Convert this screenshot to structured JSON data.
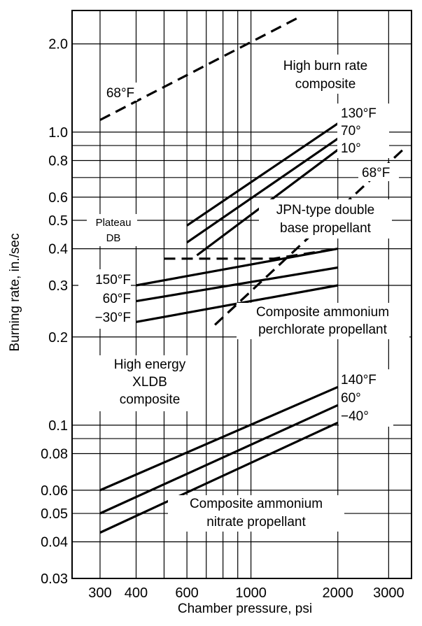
{
  "chart_data": {
    "type": "line",
    "xscale": "log",
    "yscale": "log",
    "xlabel": "Chamber pressure, psi",
    "ylabel": "Burning rate, in./sec",
    "xlim": [
      240,
      3600
    ],
    "ylim": [
      0.03,
      2.6
    ],
    "grid": true,
    "x_ticks": [
      {
        "v": 300,
        "t": "300"
      },
      {
        "v": 400,
        "t": "400"
      },
      {
        "v": 600,
        "t": "600"
      },
      {
        "v": 1000,
        "t": "1000"
      },
      {
        "v": 2000,
        "t": "2000"
      },
      {
        "v": 3000,
        "t": "3000"
      }
    ],
    "y_ticks": [
      {
        "v": 2.0,
        "t": "2.0"
      },
      {
        "v": 1.0,
        "t": "1.0"
      },
      {
        "v": 0.8,
        "t": "0.8"
      },
      {
        "v": 0.6,
        "t": "0.6"
      },
      {
        "v": 0.5,
        "t": "0.5"
      },
      {
        "v": 0.4,
        "t": "0.4"
      },
      {
        "v": 0.3,
        "t": "0.3"
      },
      {
        "v": 0.2,
        "t": "0.2"
      },
      {
        "v": 0.1,
        "t": "0.1"
      },
      {
        "v": 0.08,
        "t": "0.08"
      },
      {
        "v": 0.06,
        "t": "0.06"
      },
      {
        "v": 0.05,
        "t": "0.05"
      },
      {
        "v": 0.04,
        "t": "0.04"
      },
      {
        "v": 0.03,
        "t": "0.03"
      }
    ],
    "x_grid": [
      300,
      400,
      500,
      600,
      700,
      800,
      900,
      1000,
      2000,
      3000
    ],
    "y_grid": [
      0.04,
      0.05,
      0.06,
      0.08,
      0.09,
      0.1,
      0.2,
      0.3,
      0.4,
      0.5,
      0.6,
      0.7,
      0.8,
      0.9,
      1.0,
      2.0
    ],
    "series": [
      {
        "name": "68°F",
        "dash": true,
        "points": [
          [
            300,
            1.1
          ],
          [
            1450,
            2.45
          ]
        ]
      },
      {
        "name": "130°F",
        "dash": false,
        "points": [
          [
            600,
            0.48
          ],
          [
            2000,
            1.07
          ]
        ]
      },
      {
        "name": "70°",
        "dash": false,
        "points": [
          [
            600,
            0.42
          ],
          [
            2000,
            0.95
          ]
        ]
      },
      {
        "name": "10°",
        "dash": false,
        "points": [
          [
            650,
            0.38
          ],
          [
            2000,
            0.87
          ]
        ]
      },
      {
        "name": "68°F",
        "dash": true,
        "points": [
          [
            750,
            0.22
          ],
          [
            3400,
            0.88
          ]
        ]
      },
      {
        "name": "Plateau DB",
        "dash": true,
        "points": [
          [
            500,
            0.37
          ],
          [
            1200,
            0.37
          ],
          [
            2000,
            0.4
          ]
        ]
      },
      {
        "name": "150°F",
        "dash": false,
        "points": [
          [
            400,
            0.3
          ],
          [
            2000,
            0.4
          ]
        ]
      },
      {
        "name": "60°F",
        "dash": false,
        "points": [
          [
            400,
            0.265
          ],
          [
            2000,
            0.345
          ]
        ]
      },
      {
        "name": "-30°F",
        "dash": false,
        "points": [
          [
            400,
            0.225
          ],
          [
            2000,
            0.3
          ]
        ]
      },
      {
        "name": "140°F",
        "dash": false,
        "points": [
          [
            300,
            0.06
          ],
          [
            2000,
            0.135
          ]
        ]
      },
      {
        "name": "60°",
        "dash": false,
        "points": [
          [
            300,
            0.05
          ],
          [
            2000,
            0.117
          ]
        ]
      },
      {
        "name": "-40°",
        "dash": false,
        "points": [
          [
            300,
            0.043
          ],
          [
            2000,
            0.102
          ]
        ]
      }
    ],
    "annotations": {
      "high_burn_1": "High burn rate",
      "high_burn_2": "composite",
      "t68_a": "68°F",
      "t130": "130°F",
      "t70": "70°",
      "t10": "10°",
      "t68_b": "68°F",
      "plateau": "Plateau",
      "db": "DB",
      "jpn_1": "JPN-type double",
      "jpn_2": "base propellant",
      "t150": "150°F",
      "t60f": "60°F",
      "tm30": "−30°F",
      "cap_1": "Composite ammonium",
      "cap_2": "perchlorate propellant",
      "xldb_1": "High energy",
      "xldb_2": "XLDB",
      "xldb_3": "composite",
      "t140": "140°F",
      "t60": "60°",
      "tm40": "−40°",
      "can_1": "Composite ammonium",
      "can_2": "nitrate propellant"
    }
  }
}
